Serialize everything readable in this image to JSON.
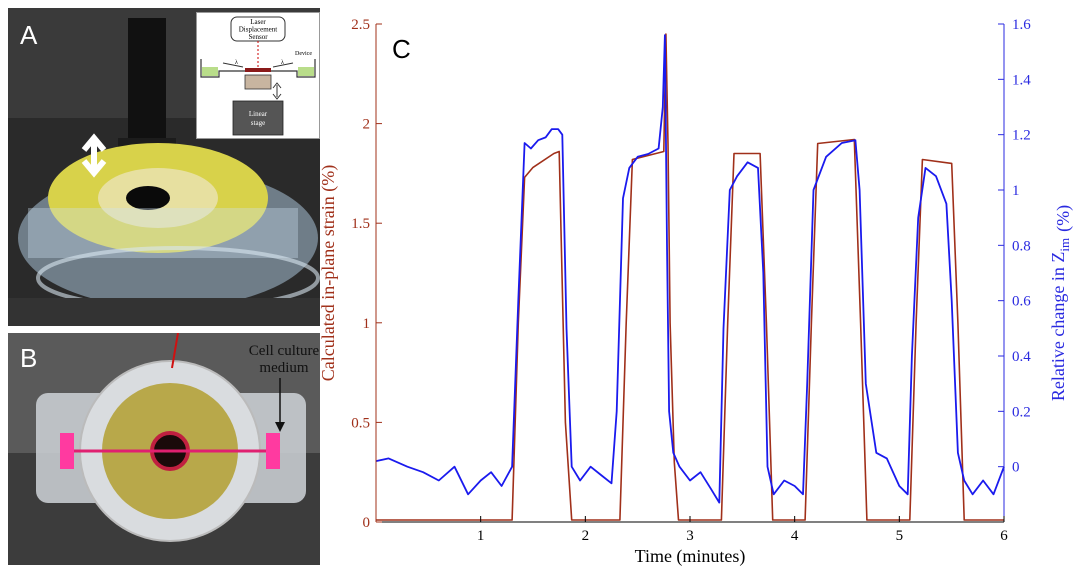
{
  "panels": {
    "a": {
      "letter": "A",
      "schematic": {
        "sensor_label_1": "Laser",
        "sensor_label_2": "Displacement",
        "sensor_label_3": "Sensor",
        "device_label": "Device",
        "lambda_left": "λ",
        "lambda_right": "λ",
        "stage_label_1": "Linear",
        "stage_label_2": "stage"
      }
    },
    "b": {
      "letter": "B",
      "callout_line1": "Cell culture",
      "callout_line2": "medium"
    },
    "c": {
      "letter": "C"
    }
  },
  "colors": {
    "strain": "#a0301a",
    "impedance": "#1a1aee",
    "right_axis": "#2a2ae0"
  },
  "chart_data": {
    "type": "line",
    "xlabel": "Time (minutes)",
    "ylabel": "Calculated in-plane strain (%)",
    "ylabel_right_prefix": "Relative change in Z",
    "ylabel_right_sub": "im",
    "ylabel_right_suffix": "(%)",
    "xlim": [
      0,
      6
    ],
    "ylim": [
      0,
      2.5
    ],
    "ylim_right": [
      -0.2,
      1.6
    ],
    "x_ticks": [
      "1",
      "2",
      "3",
      "4",
      "5",
      "6"
    ],
    "y_ticks": [
      "0",
      "0.5",
      "1",
      "1.5",
      "2",
      "2.5"
    ],
    "y_ticks_right": [
      "0",
      "0.2",
      "0.4",
      "0.6",
      "0.8",
      "1",
      "1.2",
      "1.4",
      "1.6"
    ],
    "series": [
      {
        "axis": "left",
        "x": [
          0,
          1.3,
          1.36,
          1.42,
          1.5,
          1.7,
          1.75,
          1.81,
          1.87,
          2.33,
          2.39,
          2.45,
          2.75,
          2.77,
          2.79,
          2.81,
          2.85,
          2.89,
          3.3,
          3.36,
          3.42,
          3.67,
          3.73,
          3.79,
          4.1,
          4.16,
          4.22,
          4.57,
          4.63,
          4.69,
          5.1,
          5.16,
          5.22,
          5.5,
          5.56,
          5.62,
          6.0
        ],
        "y": [
          0.01,
          0.01,
          1.0,
          1.73,
          1.78,
          1.85,
          1.86,
          0.5,
          0.01,
          0.01,
          1.0,
          1.82,
          1.86,
          2.45,
          1.9,
          1.0,
          0.3,
          0.01,
          0.01,
          1.0,
          1.85,
          1.85,
          1.0,
          0.01,
          0.01,
          1.0,
          1.9,
          1.92,
          1.0,
          0.01,
          0.01,
          1.0,
          1.82,
          1.8,
          1.0,
          0.01,
          0.01
        ]
      },
      {
        "axis": "right",
        "x": [
          0,
          0.12,
          0.3,
          0.45,
          0.6,
          0.75,
          0.88,
          1.0,
          1.1,
          1.2,
          1.3,
          1.36,
          1.42,
          1.48,
          1.55,
          1.62,
          1.68,
          1.74,
          1.78,
          1.82,
          1.87,
          1.95,
          2.05,
          2.15,
          2.25,
          2.3,
          2.36,
          2.42,
          2.5,
          2.6,
          2.7,
          2.74,
          2.76,
          2.78,
          2.8,
          2.84,
          2.9,
          3.0,
          3.1,
          3.2,
          3.28,
          3.32,
          3.38,
          3.45,
          3.55,
          3.65,
          3.7,
          3.74,
          3.8,
          3.9,
          4.0,
          4.08,
          4.12,
          4.18,
          4.3,
          4.45,
          4.58,
          4.62,
          4.68,
          4.78,
          4.88,
          5.0,
          5.08,
          5.12,
          5.18,
          5.25,
          5.35,
          5.45,
          5.5,
          5.56,
          5.62,
          5.7,
          5.8,
          5.9,
          6.0
        ],
        "y": [
          0.02,
          0.03,
          0.0,
          -0.02,
          -0.05,
          0.0,
          -0.1,
          -0.05,
          -0.02,
          -0.07,
          0.0,
          0.6,
          1.17,
          1.15,
          1.18,
          1.19,
          1.22,
          1.22,
          1.2,
          0.5,
          0.0,
          -0.05,
          0.0,
          -0.03,
          -0.06,
          0.2,
          0.97,
          1.08,
          1.12,
          1.13,
          1.15,
          1.3,
          1.56,
          0.8,
          0.2,
          0.05,
          0.0,
          -0.05,
          -0.02,
          -0.08,
          -0.13,
          0.5,
          1.0,
          1.05,
          1.1,
          1.08,
          0.7,
          0.0,
          -0.1,
          -0.05,
          -0.07,
          -0.1,
          0.3,
          1.0,
          1.12,
          1.17,
          1.18,
          1.0,
          0.3,
          0.05,
          0.03,
          -0.07,
          -0.1,
          0.4,
          0.9,
          1.08,
          1.05,
          0.95,
          0.6,
          0.05,
          -0.05,
          -0.1,
          -0.05,
          -0.1,
          0.0
        ]
      }
    ]
  }
}
